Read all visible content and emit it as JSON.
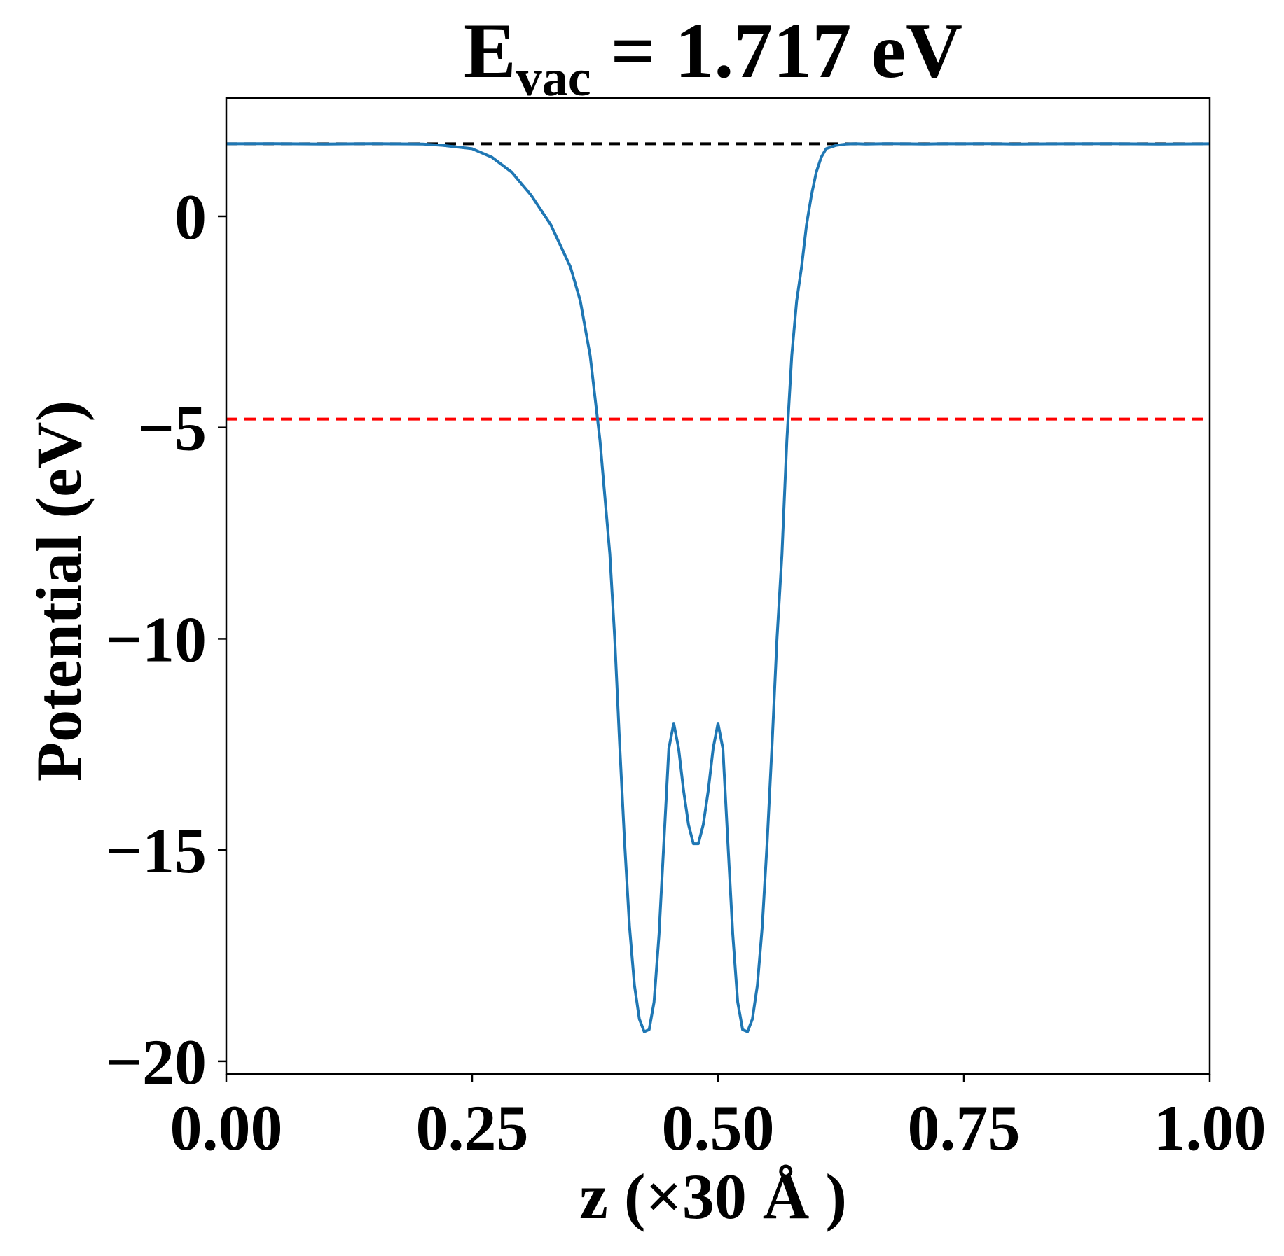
{
  "chart_data": {
    "type": "line",
    "title": {
      "main": "E",
      "subscript": "vac",
      "rest": " = 1.717 eV"
    },
    "xlabel": "z (×30 Å )",
    "ylabel": "Potential (eV)",
    "xlim": [
      0.0,
      1.0
    ],
    "ylim": [
      -20.3,
      2.8
    ],
    "grid": false,
    "xticks": [
      0.0,
      0.25,
      0.5,
      0.75,
      1.0
    ],
    "xtick_labels": [
      "0.00",
      "0.25",
      "0.50",
      "0.75",
      "1.00"
    ],
    "yticks": [
      0,
      -5,
      -10,
      -15,
      -20
    ],
    "ytick_labels": [
      "0",
      "−5",
      "−10",
      "−15",
      "−20"
    ],
    "hlines": [
      {
        "y": 1.717,
        "color": "#000000",
        "style": "dashed"
      },
      {
        "y": -4.8,
        "color": "#ff0000",
        "style": "dashed"
      }
    ],
    "series": [
      {
        "color": "#1f77b4",
        "x": [
          0.0,
          0.05,
          0.1,
          0.15,
          0.2,
          0.22,
          0.25,
          0.27,
          0.29,
          0.31,
          0.33,
          0.35,
          0.36,
          0.37,
          0.38,
          0.39,
          0.395,
          0.4,
          0.405,
          0.41,
          0.415,
          0.42,
          0.425,
          0.43,
          0.435,
          0.44,
          0.445,
          0.45,
          0.455,
          0.46,
          0.465,
          0.47,
          0.475,
          0.48,
          0.485,
          0.49,
          0.495,
          0.5,
          0.505,
          0.51,
          0.515,
          0.52,
          0.525,
          0.53,
          0.535,
          0.54,
          0.545,
          0.55,
          0.555,
          0.56,
          0.565,
          0.57,
          0.575,
          0.58,
          0.585,
          0.59,
          0.595,
          0.6,
          0.605,
          0.61,
          0.62,
          0.63,
          0.64,
          0.65,
          0.67,
          0.69,
          0.71,
          0.73,
          0.75,
          0.78,
          0.8,
          0.85,
          0.9,
          0.95,
          1.0
        ],
        "y": [
          1.717,
          1.72,
          1.71,
          1.72,
          1.71,
          1.68,
          1.6,
          1.4,
          1.05,
          0.5,
          -0.2,
          -1.2,
          -2.0,
          -3.3,
          -5.3,
          -8.0,
          -10.0,
          -12.5,
          -14.8,
          -16.8,
          -18.2,
          -19.0,
          -19.3,
          -19.25,
          -18.6,
          -17.0,
          -14.8,
          -12.6,
          -12.0,
          -12.6,
          -13.6,
          -14.4,
          -14.85,
          -14.85,
          -14.4,
          -13.6,
          -12.6,
          -12.0,
          -12.6,
          -14.8,
          -17.0,
          -18.6,
          -19.25,
          -19.3,
          -19.0,
          -18.2,
          -16.8,
          -14.8,
          -12.5,
          -10.0,
          -8.0,
          -5.3,
          -3.3,
          -2.0,
          -1.2,
          -0.2,
          0.5,
          1.05,
          1.4,
          1.6,
          1.68,
          1.71,
          1.72,
          1.71,
          1.72,
          1.717,
          1.71,
          1.72,
          1.717,
          1.72,
          1.71,
          1.717,
          1.72,
          1.71,
          1.717
        ]
      }
    ]
  }
}
